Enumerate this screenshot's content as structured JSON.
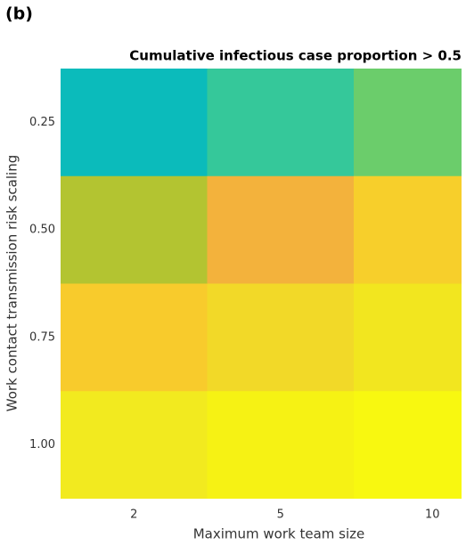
{
  "panel_label": "(b)",
  "chart_data": {
    "type": "heatmap",
    "title": "Cumulative infectious case proportion > 0.5",
    "x_label": "Maximum work team size",
    "y_label": "Work contact transmission risk scaling",
    "x_categories": [
      "2",
      "5",
      "10"
    ],
    "y_categories": [
      "0.25",
      "0.50",
      "0.75",
      "1.00"
    ],
    "colors": [
      [
        "#0bbbbb",
        "#35c89a",
        "#6bcd6b"
      ],
      [
        "#b3c431",
        "#f3b23c",
        "#f7cf2b"
      ],
      [
        "#f8cb2c",
        "#f2d928",
        "#f2e61f"
      ],
      [
        "#f2ea1f",
        "#f6f214",
        "#f8f810"
      ]
    ]
  }
}
